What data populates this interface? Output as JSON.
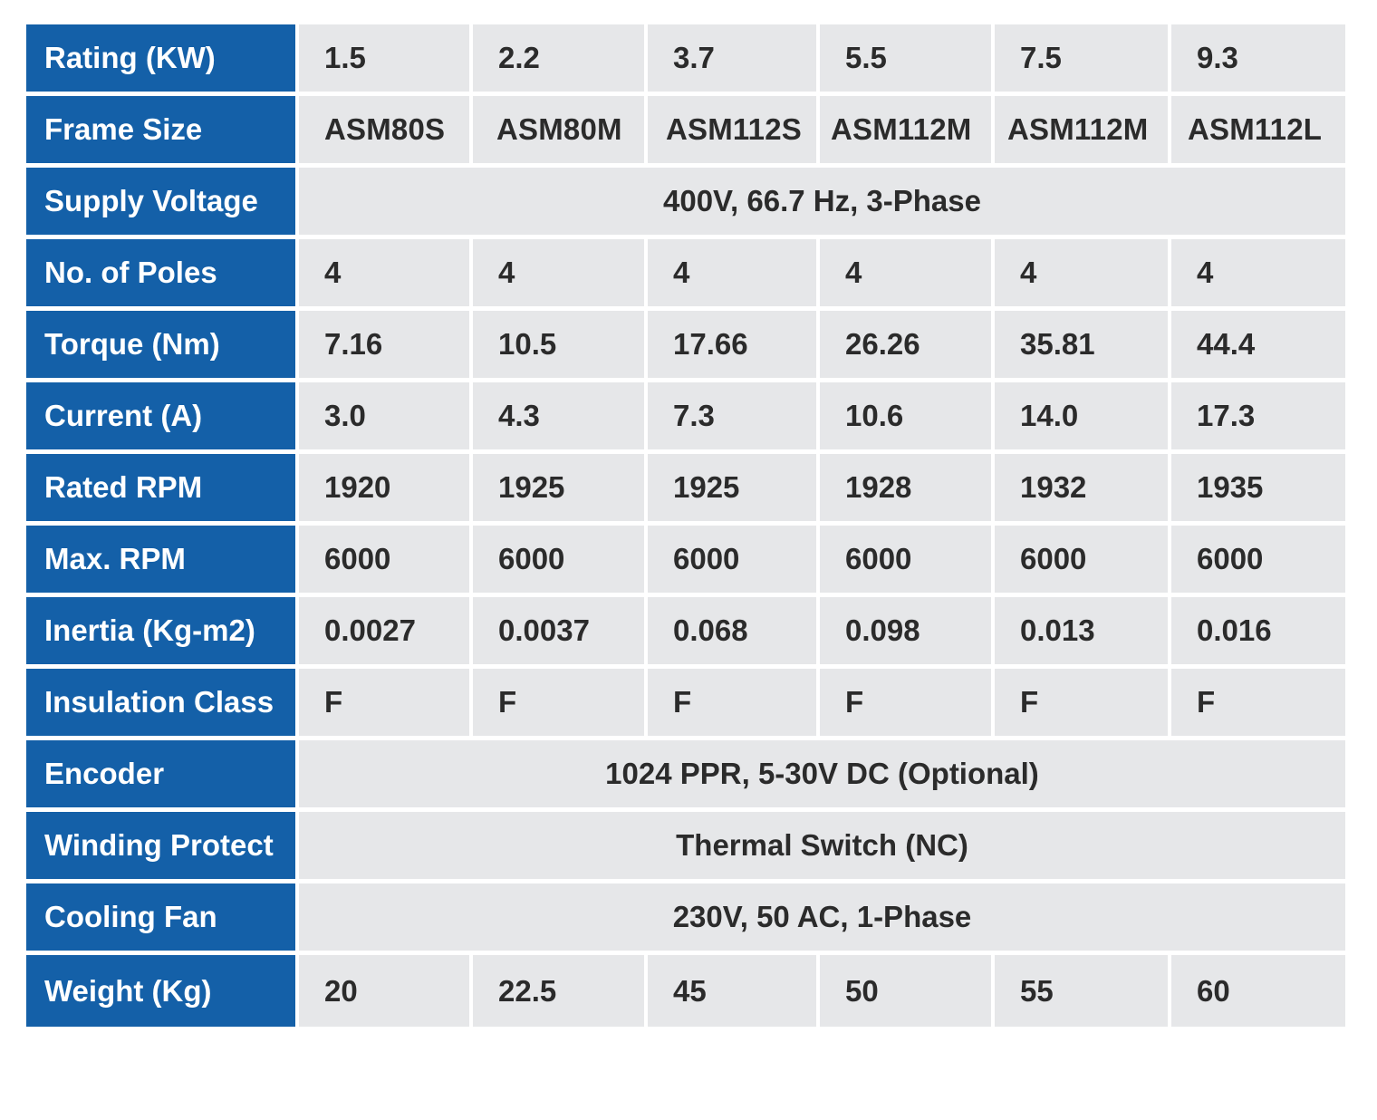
{
  "spec_table": {
    "rows": [
      {
        "label": "Rating (KW)",
        "values": [
          "1.5",
          "2.2",
          "3.7",
          "5.5",
          "7.5",
          "9.3"
        ]
      },
      {
        "label": "Frame Size",
        "values": [
          "ASM80S",
          "ASM80M",
          "ASM112S",
          "ASM112M",
          "ASM112M",
          "ASM112L"
        ]
      },
      {
        "label": "Supply Voltage",
        "merged": "400V, 66.7 Hz, 3-Phase"
      },
      {
        "label": "No. of Poles",
        "values": [
          "4",
          "4",
          "4",
          "4",
          "4",
          "4"
        ]
      },
      {
        "label": "Torque (Nm)",
        "values": [
          "7.16",
          "10.5",
          "17.66",
          "26.26",
          "35.81",
          "44.4"
        ]
      },
      {
        "label": "Current (A)",
        "values": [
          "3.0",
          "4.3",
          "7.3",
          "10.6",
          "14.0",
          "17.3"
        ]
      },
      {
        "label": "Rated RPM",
        "values": [
          "1920",
          "1925",
          "1925",
          "1928",
          "1932",
          "1935"
        ]
      },
      {
        "label": "Max. RPM",
        "values": [
          "6000",
          "6000",
          "6000",
          "6000",
          "6000",
          "6000"
        ]
      },
      {
        "label": "Inertia (Kg-m2)",
        "values": [
          "0.0027",
          "0.0037",
          "0.068",
          "0.098",
          "0.013",
          "0.016"
        ]
      },
      {
        "label": "Insulation Class",
        "values": [
          "F",
          "F",
          "F",
          "F",
          "F",
          "F"
        ]
      },
      {
        "label": "Encoder",
        "merged": "1024 PPR, 5-30V DC (Optional)"
      },
      {
        "label": "Winding Protect",
        "merged": "Thermal Switch (NC)"
      },
      {
        "label": "Cooling Fan",
        "merged": "230V, 50 AC, 1-Phase"
      },
      {
        "label": "Weight (Kg)",
        "values": [
          "20",
          "22.5",
          "45",
          "50",
          "55",
          "60"
        ]
      }
    ]
  },
  "colors": {
    "label_background": "#1460a8",
    "cell_background": "#e6e7e9",
    "label_text": "#ffffff",
    "cell_text": "#2b2b2b"
  }
}
